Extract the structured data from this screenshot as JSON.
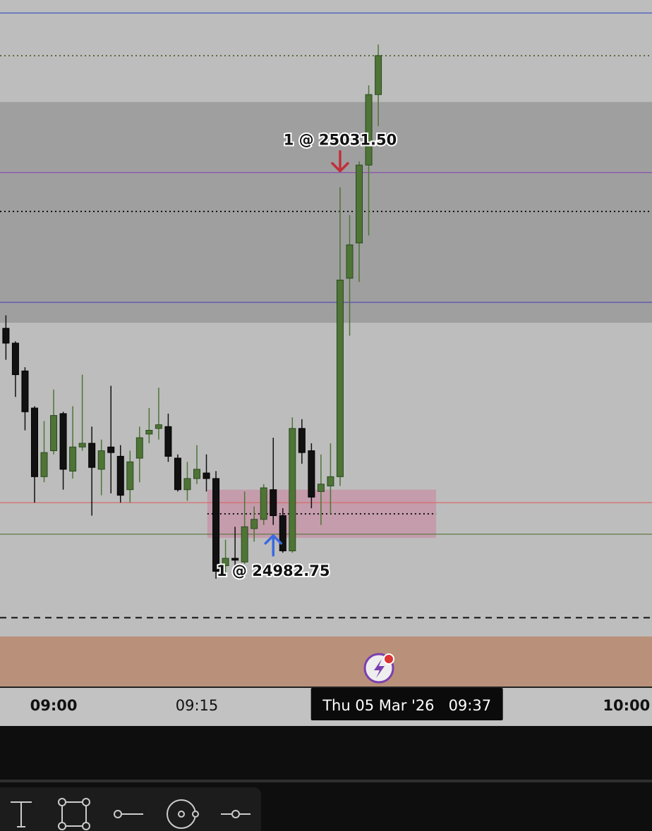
{
  "chart_data": {
    "type": "candlestick",
    "xlim": [
      -0.62,
      67.67
    ],
    "ylim": [
      24962.125,
      25054.75
    ],
    "xticks": [
      {
        "value": 5,
        "label": "09:00"
      },
      {
        "value": 20,
        "label": "09:15"
      },
      {
        "value": 65,
        "label": "10:00"
      }
    ],
    "up_color": "#4e7436",
    "down_color": "#111111",
    "open": [
      25010.5,
      25008.5,
      25004.75,
      24999.75,
      24990.5,
      24994,
      24999,
      24991.25,
      24994.5,
      24995,
      24991.5,
      24994.5,
      24993.25,
      24988.75,
      24993,
      24996.25,
      24997,
      24997.25,
      24993,
      24988.75,
      24990.25,
      24991,
      24990.25,
      24978.5,
      24979.5,
      24979,
      24983.5,
      24984.75,
      24988.75,
      24985.25,
      24980.5,
      24997,
      24994,
      24988.5,
      24989.25,
      24990.5,
      25017.25,
      25022,
      25032.5,
      25042
    ],
    "high": [
      25012.25,
      25008.75,
      25005.25,
      25000,
      24998,
      25002.25,
      24999.25,
      25000,
      25004.25,
      24997.25,
      24995.5,
      25002.75,
      24994.75,
      24994,
      24997.25,
      24999.75,
      25002.5,
      24999,
      24993.5,
      24992.5,
      24994.75,
      24993.5,
      24991.25,
      24982,
      24983.75,
      24988.5,
      24986.5,
      24989.5,
      24995.75,
      24986.25,
      24998.5,
      24998.25,
      24995,
      24993.5,
      24995,
      25029.5,
      25025.75,
      25033,
      25043.25,
      25048.75
    ],
    "low": [
      25006.25,
      25001.25,
      24996.75,
      24987,
      24989.75,
      24993.5,
      24988.75,
      24990.25,
      24994,
      24985.25,
      24988,
      24988.25,
      24987,
      24987,
      24989.75,
      24995,
      24995.5,
      24992.5,
      24988.5,
      24987.25,
      24989.5,
      24988.5,
      24976.75,
      24977.25,
      24977.5,
      24978.75,
      24981.75,
      24984,
      24984,
      24980.25,
      24980.25,
      24992.25,
      24986.25,
      24984,
      24985.5,
      24989.25,
      25009.5,
      25016.75,
      25023,
      25037.75
    ],
    "close": [
      25008.5,
      25004.25,
      24999.25,
      24990.5,
      24993.75,
      24998.75,
      24991.5,
      24994.5,
      24995,
      24991.75,
      24994,
      24993.75,
      24988,
      24992.5,
      24995.75,
      24996.75,
      24997.5,
      24993.25,
      24988.75,
      24990.25,
      24991.5,
      24990.25,
      24977.75,
      24979.5,
      24979.25,
      24983.75,
      24984.75,
      24989,
      24985.25,
      24980.5,
      24997,
      24993.75,
      24987.75,
      24989.5,
      24990.5,
      25017,
      25021.75,
      25032.5,
      25042,
      25047.25
    ],
    "zones": [
      {
        "y": [
          25041,
          25011.25
        ],
        "color": "#9f9f9f"
      },
      {
        "x": [
          21.1,
          45.06
        ],
        "y": [
          24988.75,
          24982.25
        ],
        "color": "rgba(205,110,145,0.42)"
      }
    ],
    "lines": [
      {
        "value": 25053,
        "color": "#4a5fc1",
        "style": "solid"
      },
      {
        "value": 25047.25,
        "color": "#5a6a40",
        "style": "dotted"
      },
      {
        "value": 25031.5,
        "color": "#8a4fb0",
        "style": "solid"
      },
      {
        "value": 25026.25,
        "color": "#111111",
        "style": "dotted"
      },
      {
        "value": 25014,
        "color": "#5a55b0",
        "style": "solid"
      },
      {
        "value": 24987,
        "color": "#d66a6a",
        "style": "solid"
      },
      {
        "value": 24982.75,
        "color": "#5f7a45",
        "style": "solid"
      },
      {
        "value": 24971.5,
        "color": "#111111",
        "style": "dashed"
      },
      {
        "value": 24985.5,
        "x": [
          21.1,
          45.06
        ],
        "color": "#111111",
        "style": "dotted"
      }
    ],
    "trades": [
      {
        "x": 35,
        "price": 25031.5,
        "label": "1 @ 25031.50",
        "color": "#c0303a"
      },
      {
        "x": 28,
        "price": 24982.75,
        "label": "1 @ 24982.75",
        "color": "#3a6ae0"
      }
    ],
    "crosshair": {
      "x": 42,
      "label": "Thu 05 Mar '26   09:37"
    }
  }
}
